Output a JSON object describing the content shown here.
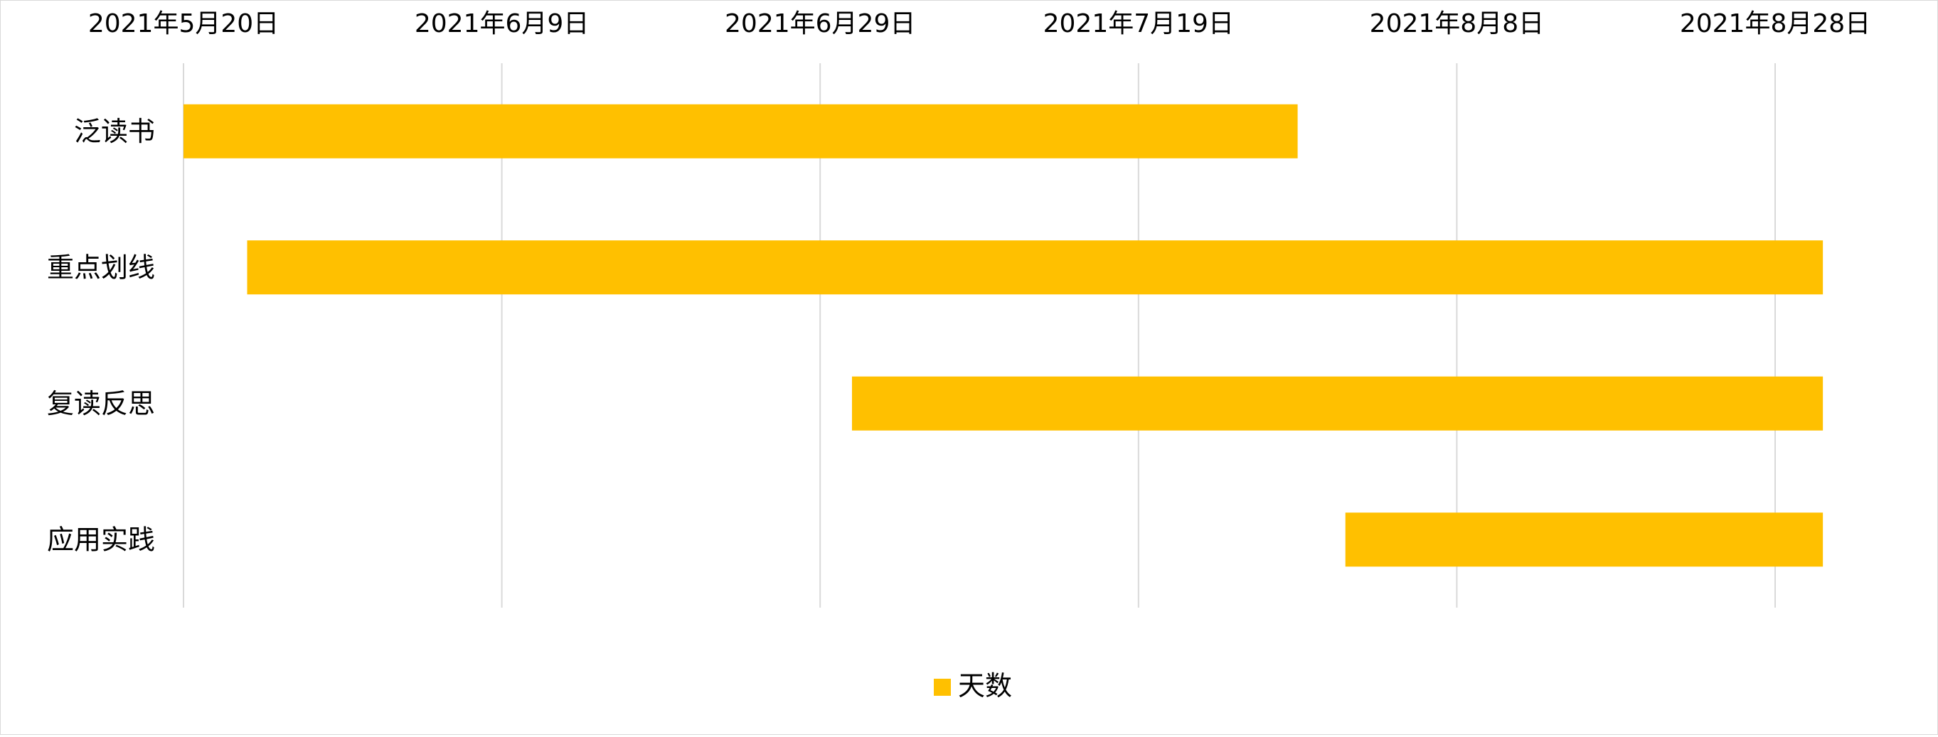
{
  "chart_data": {
    "type": "bar",
    "orientation": "horizontal",
    "stacked_gantt": true,
    "categories": [
      "泛读书",
      "重点划线",
      "复读反思",
      "应用实践"
    ],
    "series": [
      {
        "name": "天数",
        "color": "#FFC000",
        "start": [
          "2021-05-20",
          "2021-05-24",
          "2021-07-01",
          "2021-08-01"
        ],
        "end": [
          "2021-07-29",
          "2021-08-31",
          "2021-08-31",
          "2021-08-31"
        ],
        "days": [
          70,
          99,
          61,
          30
        ]
      }
    ],
    "x_axis": {
      "position": "top",
      "min": "2021-05-20",
      "max": "2021-08-28",
      "tick_interval_days": 20,
      "tick_labels": [
        "2021年5月20日",
        "2021年6月9日",
        "2021年6月29日",
        "2021年7月19日",
        "2021年8月8日",
        "2021年8月28日"
      ]
    },
    "grid": {
      "vertical": true,
      "color": "#d9d9d9"
    },
    "legend": {
      "placement": "bottom",
      "label": "天数",
      "color": "#FFC000"
    },
    "title": "",
    "xlabel": "",
    "ylabel": ""
  }
}
